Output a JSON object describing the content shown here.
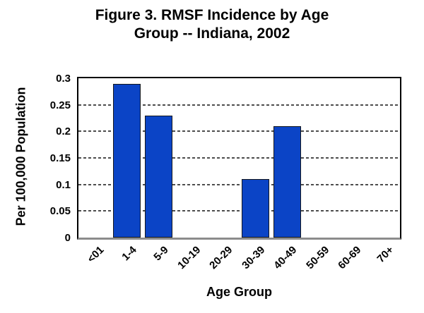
{
  "title_lines": [
    "Figure 3. RMSF Incidence by Age",
    "Group -- Indiana, 2002"
  ],
  "chart_data": {
    "type": "bar",
    "title": "Figure 3. RMSF Incidence by Age Group -- Indiana, 2002",
    "categories": [
      "<01",
      "1-4",
      "5-9",
      "10-19",
      "20-29",
      "30-39",
      "40-49",
      "50-59",
      "60-69",
      "70+"
    ],
    "values": [
      0,
      0.29,
      0.23,
      0,
      0,
      0.11,
      0.21,
      0,
      0,
      0
    ],
    "xlabel": "Age Group",
    "ylabel": "Per 100,000 Population",
    "ylim": [
      0,
      0.3
    ],
    "y_ticks": [
      0,
      0.05,
      0.1,
      0.15,
      0.2,
      0.25,
      0.3
    ],
    "y_tick_labels": [
      "0",
      "0.05",
      "0.1",
      "0.15",
      "0.2",
      "0.25",
      "0.3"
    ],
    "grid": "horizontal-dashed",
    "legend": "none",
    "bar_color": "#0b44c6",
    "bar_border_color": "#15181c",
    "plot_border_color": "#000000",
    "x_axis_line_color": "#8c8c8c"
  }
}
